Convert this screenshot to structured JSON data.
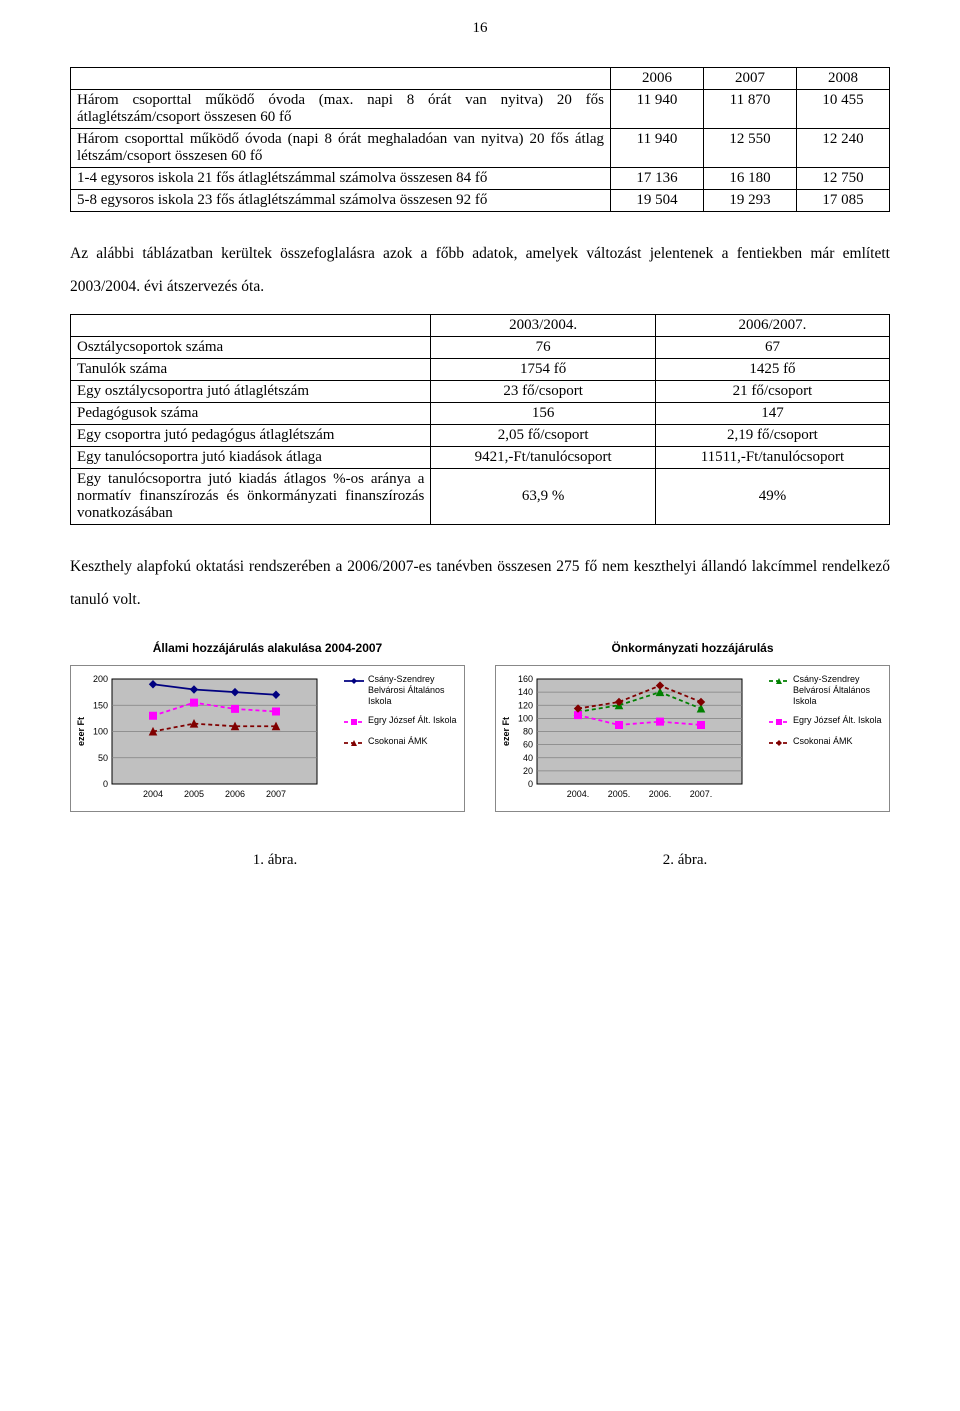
{
  "page_number": "16",
  "table1": {
    "headers": [
      "",
      "2006",
      "2007",
      "2008"
    ],
    "rows": [
      {
        "label": "Három csoporttal működő óvoda (max. napi 8 órát van nyitva) 20 fős átlaglétszám/csoport összesen 60 fő",
        "v": [
          "11 940",
          "11 870",
          "10 455"
        ]
      },
      {
        "label": "Három csoporttal működő óvoda (napi 8 órát meghaladóan van nyitva) 20 fős átlag létszám/csoport összesen 60 fő",
        "v": [
          "11 940",
          "12 550",
          "12 240"
        ]
      },
      {
        "label": "1-4 egysoros iskola 21 fős átlaglétszámmal számolva összesen 84 fő",
        "v": [
          "17 136",
          "16 180",
          "12 750"
        ]
      },
      {
        "label": "5-8 egysoros iskola 23 fős átlaglétszámmal számolva összesen 92 fő",
        "v": [
          "19 504",
          "19 293",
          "17 085"
        ]
      }
    ]
  },
  "para1": "Az alábbi táblázatban kerültek összefoglalásra azok a főbb adatok, amelyek változást jelentenek a fentiekben már említett 2003/2004. évi átszervezés óta.",
  "table2": {
    "headers": [
      "",
      "2003/2004.",
      "2006/2007."
    ],
    "rows": [
      {
        "label": "Osztálycsoportok száma",
        "a": "76",
        "b": "67"
      },
      {
        "label": "Tanulók száma",
        "a": "1754 fő",
        "b": "1425 fő"
      },
      {
        "label": "Egy osztálycsoportra jutó átlaglétszám",
        "a": "23 fő/csoport",
        "b": "21 fő/csoport"
      },
      {
        "label": "Pedagógusok száma",
        "a": "156",
        "b": "147"
      },
      {
        "label": "Egy csoportra jutó pedagógus átlaglétszám",
        "a": "2,05 fő/csoport",
        "b": "2,19 fő/csoport"
      },
      {
        "label": "Egy tanulócsoportra jutó kiadások átlaga",
        "a": "9421,-Ft/tanulócsoport",
        "b": "11511,-Ft/tanulócsoport"
      },
      {
        "label": "Egy tanulócsoportra jutó kiadás átlagos %-os aránya a normatív finanszírozás és önkormányzati finanszírozás vonatkozásában",
        "a": "63,9 %",
        "b": "49%"
      }
    ]
  },
  "para2": "Keszthely alapfokú oktatási rendszerében a 2006/2007-es tanévben összesen 275 fő nem keszthelyi állandó lakcímmel rendelkező tanuló volt.",
  "chart1": {
    "title": "Állami hozzájárulás alakulása 2004-2007",
    "y_label": "ezer Ft",
    "ylim": [
      0,
      200
    ],
    "ytick_step": 50,
    "x_labels": [
      "2004",
      "2005",
      "2006",
      "2007"
    ],
    "plot_bg": "#c0c0c0",
    "grid_color": "#808080",
    "series": [
      {
        "name": "Csány-Szendrey Belvárosi Általános Iskola",
        "color": "#000080",
        "dash": "none",
        "marker": "diamond",
        "values": [
          190,
          180,
          175,
          170
        ]
      },
      {
        "name": "Egry József Ált. Iskola",
        "color": "#ff00ff",
        "dash": "4,3",
        "marker": "square",
        "values": [
          130,
          155,
          143,
          138
        ]
      },
      {
        "name": "Csokonai ÁMK",
        "color": "#800000",
        "dash": "4,3",
        "marker": "triangle",
        "values": [
          100,
          115,
          110,
          110
        ]
      }
    ]
  },
  "chart2": {
    "title": "Önkormányzati hozzájárulás",
    "y_label": "ezer Ft",
    "ylim": [
      0,
      160
    ],
    "ytick_step": 20,
    "x_labels": [
      "2004.",
      "2005.",
      "2006.",
      "2007."
    ],
    "plot_bg": "#c0c0c0",
    "grid_color": "#808080",
    "series": [
      {
        "name": "Csány-Szendrey Belvárosí Általános Iskola",
        "color": "#008000",
        "dash": "4,3",
        "marker": "triangle",
        "values": [
          110,
          120,
          140,
          115
        ]
      },
      {
        "name": "Egry József Ált. Iskola",
        "color": "#ff00ff",
        "dash": "4,3",
        "marker": "square",
        "values": [
          105,
          90,
          95,
          90
        ]
      },
      {
        "name": "Csokonai ÁMK",
        "color": "#800000",
        "dash": "4,3",
        "marker": "diamond",
        "values": [
          115,
          125,
          150,
          125
        ]
      }
    ]
  },
  "fig_labels": {
    "a": "1. ábra.",
    "b": "2. ábra."
  }
}
